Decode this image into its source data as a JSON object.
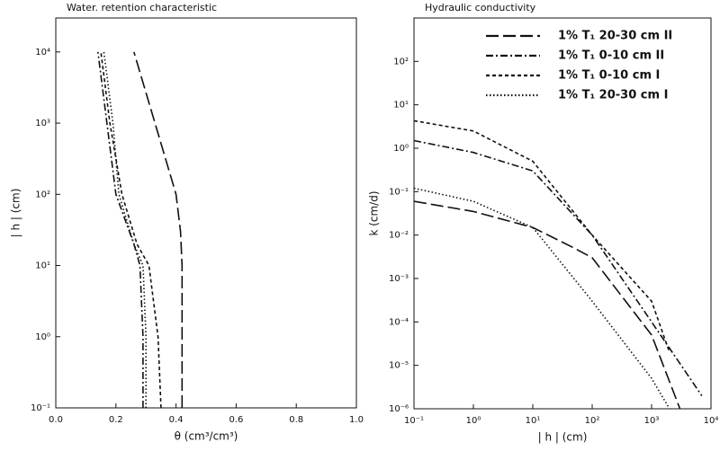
{
  "chart_data": [
    {
      "type": "line",
      "title": "Water. retention characteristic",
      "x_label": "θ (cm³/cm³)",
      "y_label": "| h | (cm)",
      "xlim": [
        0,
        1
      ],
      "ylim": [
        0.1,
        30000
      ],
      "ylog": true,
      "xticks": [
        {
          "value": 0,
          "label": "0.0"
        },
        0.2,
        0.4,
        0.6,
        0.8,
        {
          "value": 1,
          "label": "1.0"
        }
      ],
      "yticks": [
        {
          "value": 0.1,
          "label": "10⁻¹"
        },
        {
          "value": 1,
          "label": "10⁰"
        },
        {
          "value": 10,
          "label": "10¹"
        },
        {
          "value": 100,
          "label": "10²"
        },
        {
          "value": 1000,
          "label": "10³"
        },
        {
          "value": 10000,
          "label": "10⁴"
        }
      ],
      "series": [
        {
          "color": "#111",
          "dash": "14 5",
          "x": [
            0.42,
            0.42,
            0.42,
            0.415,
            0.4,
            0.33,
            0.26
          ],
          "y": [
            0.1,
            1,
            10,
            30,
            100,
            1000,
            10000
          ]
        },
        {
          "color": "#111",
          "dash": "8 3 2 3",
          "x": [
            0.29,
            0.29,
            0.28,
            0.26,
            0.2,
            0.17,
            0.14
          ],
          "y": [
            0.1,
            1,
            10,
            20,
            100,
            1000,
            10000
          ]
        },
        {
          "color": "#111",
          "dash": "4 3",
          "x": [
            0.35,
            0.34,
            0.31,
            0.27,
            0.22,
            0.18,
            0.15
          ],
          "y": [
            0.1,
            1,
            10,
            20,
            100,
            1000,
            10000
          ]
        },
        {
          "color": "#111",
          "dash": "1.5 2.5",
          "x": [
            0.3,
            0.3,
            0.29,
            0.26,
            0.21,
            0.19,
            0.16
          ],
          "y": [
            0.1,
            1,
            10,
            20,
            100,
            1000,
            10000
          ]
        }
      ]
    },
    {
      "type": "line",
      "title": "Hydraulic conductivity",
      "x_label": "| h | (cm)",
      "y_label": "k (cm/d)",
      "xlim": [
        0.1,
        10000
      ],
      "ylim": [
        1e-06,
        1000
      ],
      "xlog": true,
      "ylog": true,
      "legend": "upper right",
      "xticks": [
        {
          "value": 0.1,
          "label": "10⁻¹"
        },
        {
          "value": 1,
          "label": "10⁰"
        },
        {
          "value": 10,
          "label": "10¹"
        },
        {
          "value": 100,
          "label": "10²"
        },
        {
          "value": 1000,
          "label": "10³"
        },
        {
          "value": 10000,
          "label": "10⁴"
        }
      ],
      "yticks": [
        {
          "value": 1e-06,
          "label": "10⁻⁶"
        },
        {
          "value": 1e-05,
          "label": "10⁻⁵"
        },
        {
          "value": 0.0001,
          "label": "10⁻⁴"
        },
        {
          "value": 0.001,
          "label": "10⁻³"
        },
        {
          "value": 0.01,
          "label": "10⁻²"
        },
        {
          "value": 0.1,
          "label": "10⁻¹"
        },
        {
          "value": 1,
          "label": "10⁰"
        },
        {
          "value": 10,
          "label": "10¹"
        },
        {
          "value": 100,
          "label": "10²"
        }
      ],
      "series": [
        {
          "name": "1% T₁ 20-30 cm II",
          "color": "#111",
          "dash": "14 5",
          "x": [
            0.1,
            1,
            10,
            50,
            100,
            1000,
            3000
          ],
          "y": [
            0.06,
            0.035,
            0.015,
            0.005,
            0.003,
            5e-05,
            1e-06
          ]
        },
        {
          "name": "1% T₁ 0-10 cm II",
          "color": "#111",
          "dash": "8 3 2 3",
          "x": [
            0.1,
            1,
            10,
            100,
            1000,
            7000
          ],
          "y": [
            1.5,
            0.8,
            0.3,
            0.01,
            0.0001,
            2e-06
          ]
        },
        {
          "name": "1% T₁ 0-10 cm I",
          "color": "#111",
          "dash": "4 3",
          "x": [
            0.1,
            1,
            10,
            100,
            1000,
            2000
          ],
          "y": [
            4.3,
            2.5,
            0.5,
            0.01,
            0.0003,
            2e-05
          ]
        },
        {
          "name": "1% T₁ 20-30 cm I",
          "color": "#111",
          "dash": "1.5 2.5",
          "x": [
            0.1,
            1,
            10,
            100,
            1000,
            2000
          ],
          "y": [
            0.12,
            0.06,
            0.015,
            0.0003,
            5e-06,
            1e-06
          ]
        }
      ]
    }
  ]
}
